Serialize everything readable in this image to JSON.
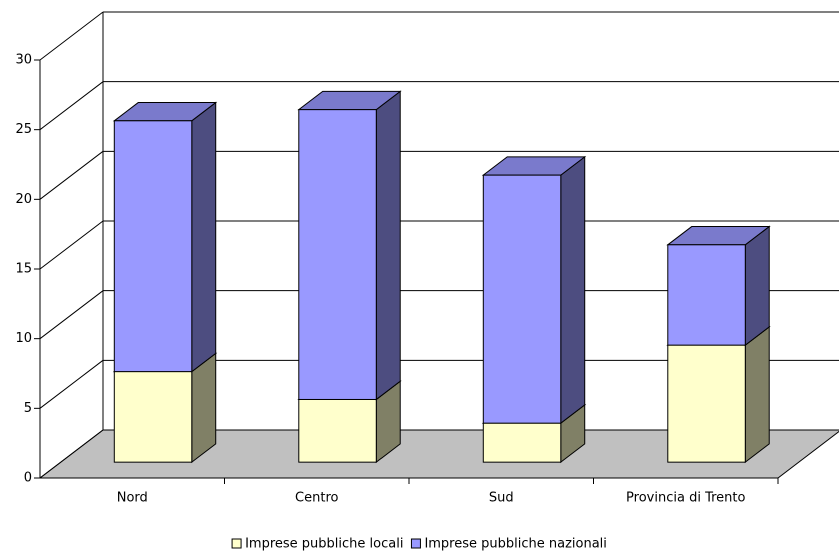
{
  "chart_data": {
    "type": "bar",
    "stacked": true,
    "three_d": true,
    "categories": [
      "Nord",
      "Centro",
      "Sud",
      "Provincia di Trento"
    ],
    "series": [
      {
        "name": "Imprese pubbliche locali",
        "color": "#FFFFCC",
        "values": [
          6.5,
          4.5,
          2.8,
          8.4
        ]
      },
      {
        "name": "Imprese pubbliche nazionali",
        "color": "#9999FF",
        "values": [
          18.0,
          20.8,
          17.8,
          7.2
        ]
      }
    ],
    "ylim": [
      0,
      30
    ],
    "yticks": [
      0,
      5,
      10,
      15,
      20,
      25,
      30
    ],
    "grid": true,
    "legend": "bottom"
  }
}
